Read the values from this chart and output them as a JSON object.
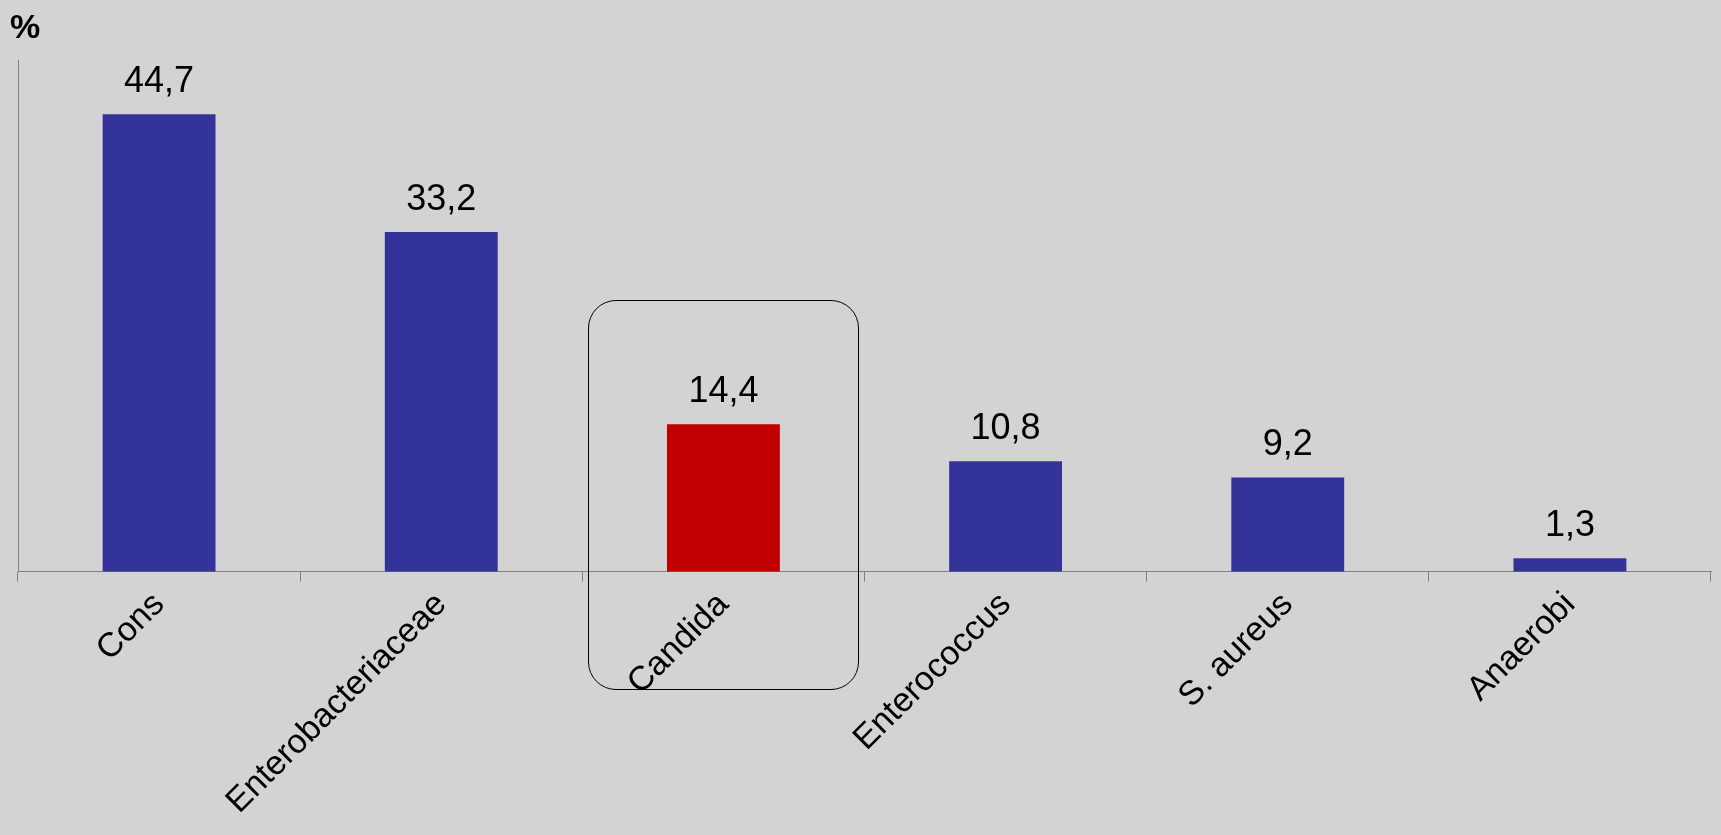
{
  "chart_data": {
    "type": "bar",
    "ylabel": "%",
    "categories": [
      "Cons",
      "Enterobacteriaceae",
      "Candida",
      "Enterococcus",
      "S. aureus",
      "Anaerobi"
    ],
    "values": [
      44.7,
      33.2,
      14.4,
      10.8,
      9.2,
      1.3
    ],
    "colors": [
      "#333399",
      "#333399",
      "#c00000",
      "#333399",
      "#333399",
      "#333399"
    ],
    "value_labels": [
      "44,7",
      "33,2",
      "14,4",
      "10,8",
      "9,2",
      "1,3"
    ],
    "grid": false,
    "legend": false
  }
}
